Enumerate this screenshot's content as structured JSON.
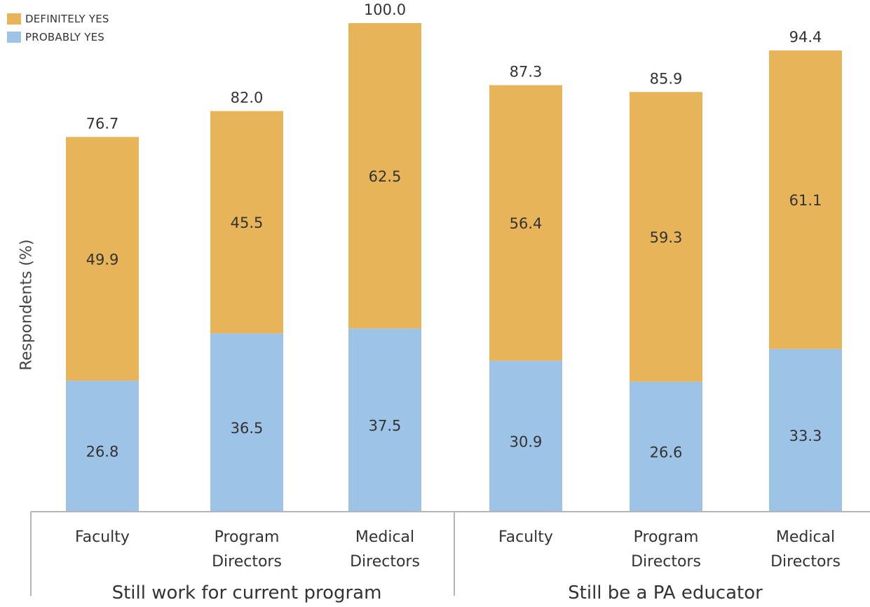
{
  "legend": [
    {
      "label": "DEFINITELY YES",
      "color": "#E8B45A"
    },
    {
      "label": "PROBABLY YES",
      "color": "#9DC3E6"
    }
  ],
  "chart_data": {
    "type": "bar",
    "stacked": true,
    "ylabel": "Respondents (%)",
    "ylim": [
      0,
      100
    ],
    "groups": [
      {
        "label": "Still work for current program",
        "categories": [
          [
            "Faculty"
          ],
          [
            "Program",
            "Directors"
          ],
          [
            "Medical",
            "Directors"
          ]
        ]
      },
      {
        "label": "Still be a PA educator",
        "categories": [
          [
            "Faculty"
          ],
          [
            "Program",
            "Directors"
          ],
          [
            "Medical",
            "Directors"
          ]
        ]
      }
    ],
    "series": [
      {
        "name": "PROBABLY YES",
        "color": "#9DC3E6",
        "values": [
          26.8,
          36.5,
          37.5,
          30.9,
          26.6,
          33.3
        ]
      },
      {
        "name": "DEFINITELY YES",
        "color": "#E8B45A",
        "values": [
          49.9,
          45.5,
          62.5,
          56.4,
          59.3,
          61.1
        ]
      }
    ],
    "totals": [
      76.7,
      82.0,
      100.0,
      87.3,
      85.9,
      94.4
    ],
    "value_labels": {
      "probably": [
        "26.8",
        "36.5",
        "37.5",
        "30.9",
        "26.6",
        "33.3"
      ],
      "definitely": [
        "49.9",
        "45.5",
        "62.5",
        "56.4",
        "59.3",
        "61.1"
      ],
      "totals": [
        "76.7",
        "82.0",
        "100.0",
        "87.3",
        "85.9",
        "94.4"
      ]
    },
    "legend_position": "top-left",
    "grid": false
  }
}
